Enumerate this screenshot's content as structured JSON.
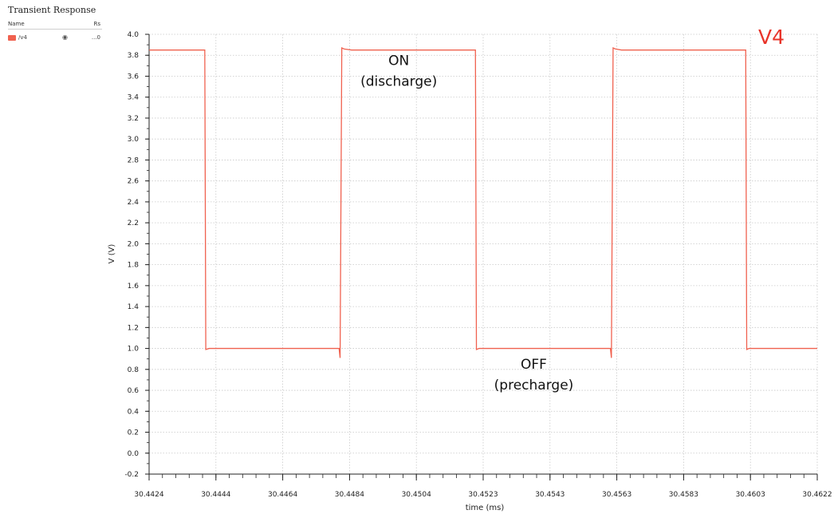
{
  "legend": {
    "title": "Transient Response",
    "col_name": "Name",
    "col_rs": "Rs",
    "signal": "/v4",
    "rs_value": "...0",
    "eye_icon": "eye-icon",
    "eye_glyph": "◉"
  },
  "signal_label": "V4",
  "colors": {
    "trace": "#f0614f",
    "signal_label": "#e8342a",
    "grid": "#c8c8c8",
    "axis": "#222222"
  },
  "chart_data": {
    "type": "line",
    "title": "Transient Response",
    "xlabel": "time (ms)",
    "ylabel": "V (V)",
    "xlim": [
      30.4424,
      30.4622
    ],
    "ylim": [
      -0.2,
      4.0
    ],
    "grid": true,
    "legend_position": "top-left",
    "x_ticks": [
      "30.4424",
      "30.4444",
      "30.4464",
      "30.4484",
      "30.4504",
      "30.4523",
      "30.4543",
      "30.4563",
      "30.4583",
      "30.4603",
      "30.4622"
    ],
    "y_ticks": [
      "-0.2",
      "0.0",
      "0.2",
      "0.4",
      "0.6",
      "0.8",
      "1.0",
      "1.2",
      "1.4",
      "1.6",
      "1.8",
      "2.0",
      "2.2",
      "2.4",
      "2.6",
      "2.8",
      "3.0",
      "3.2",
      "3.4",
      "3.6",
      "3.8",
      "4.0"
    ],
    "series": [
      {
        "name": "/v4",
        "x": [
          30.4424,
          30.44405,
          30.44408,
          30.44418,
          30.44803,
          30.44806,
          30.44811,
          30.44818,
          30.4484,
          30.45207,
          30.4521,
          30.45218,
          30.45607,
          30.4561,
          30.45615,
          30.45622,
          30.4564,
          30.46008,
          30.46011,
          30.46018,
          30.4622
        ],
        "y": [
          3.85,
          3.85,
          0.99,
          1.0,
          1.0,
          0.91,
          3.87,
          3.86,
          3.85,
          3.85,
          0.99,
          1.0,
          1.0,
          0.91,
          3.87,
          3.86,
          3.85,
          3.85,
          0.99,
          1.0,
          1.0
        ]
      }
    ],
    "annotations": [
      {
        "line1": "ON",
        "line2": "(discharge)",
        "x": 30.4498,
        "y": 3.6
      },
      {
        "line1": "OFF",
        "line2": "(precharge)",
        "x": 30.4538,
        "y": 0.7
      }
    ]
  }
}
